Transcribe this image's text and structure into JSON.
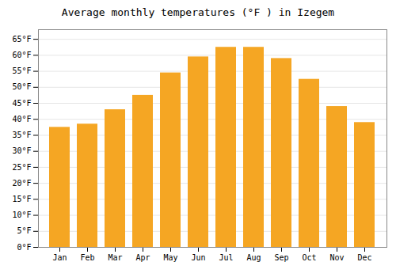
{
  "chart_data": {
    "type": "bar",
    "title": "Average monthly temperatures (°F ) in Izegem",
    "categories": [
      "Jan",
      "Feb",
      "Mar",
      "Apr",
      "May",
      "Jun",
      "Jul",
      "Aug",
      "Sep",
      "Oct",
      "Nov",
      "Dec"
    ],
    "values": [
      37.5,
      38.5,
      43.0,
      47.5,
      54.5,
      59.5,
      62.5,
      62.5,
      59.0,
      52.5,
      44.0,
      39.0
    ],
    "color": "#F5A623",
    "ylim": [
      0,
      68
    ],
    "yticks": [
      {
        "value": 0,
        "label": "0°F"
      },
      {
        "value": 5,
        "label": "5°F"
      },
      {
        "value": 10,
        "label": "10°F"
      },
      {
        "value": 15,
        "label": "15°F"
      },
      {
        "value": 20,
        "label": "20°F"
      },
      {
        "value": 25,
        "label": "25°F"
      },
      {
        "value": 30,
        "label": "30°F"
      },
      {
        "value": 35,
        "label": "35°F"
      },
      {
        "value": 40,
        "label": "40°F"
      },
      {
        "value": 45,
        "label": "45°F"
      },
      {
        "value": 50,
        "label": "50°F"
      },
      {
        "value": 55,
        "label": "55°F"
      },
      {
        "value": 60,
        "label": "60°F"
      },
      {
        "value": 65,
        "label": "65°F"
      }
    ],
    "grid": true
  }
}
